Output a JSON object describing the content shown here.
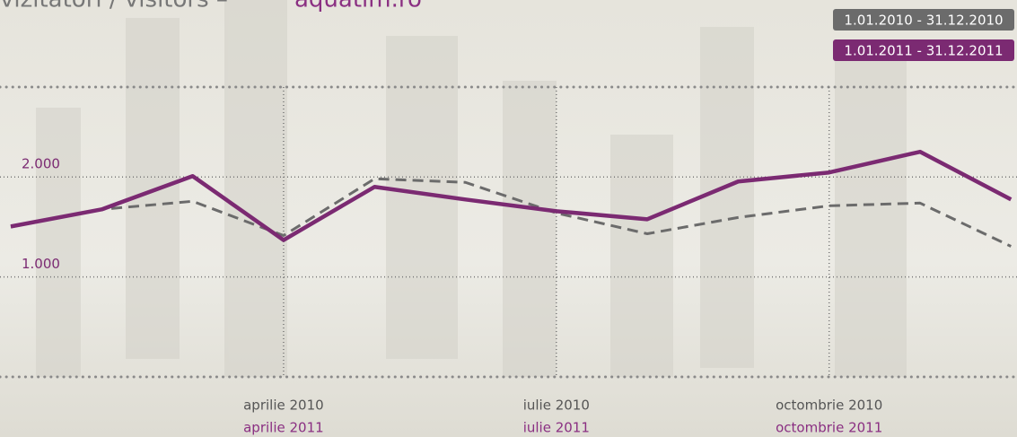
{
  "chart_data": {
    "type": "line",
    "title": "vizitatori / visitors –",
    "subtitle": "aquatim.ro",
    "categories": [
      null,
      null,
      null,
      "aprilie 2010",
      null,
      null,
      "iulie 2010",
      null,
      null,
      "octombrie 2010",
      null,
      null
    ],
    "categories_2": [
      null,
      null,
      null,
      "aprilie 2011",
      null,
      null,
      "iulie 2011",
      null,
      null,
      "octombrie 2011",
      null,
      null
    ],
    "series": [
      {
        "name": "1.01.2010 - 31.12.2010",
        "color": "#6b6b6b",
        "dashed": true,
        "values": [
          1500,
          1676,
          1757,
          1414,
          1982,
          1946,
          1640,
          1432,
          1595,
          1712,
          1739,
          1306
        ]
      },
      {
        "name": "1.01.2011 - 31.12.2011",
        "color": "#7b2a72",
        "dashed": false,
        "values": [
          1505,
          1676,
          2009,
          1369,
          1901,
          1775,
          1658,
          1577,
          1955,
          2045,
          2252,
          1775
        ]
      }
    ],
    "ylim": [
      0,
      2900
    ],
    "yticks": [
      {
        "value": 1000,
        "label": "1.000"
      },
      {
        "value": 2000,
        "label": "2.000"
      }
    ],
    "grid": true
  }
}
